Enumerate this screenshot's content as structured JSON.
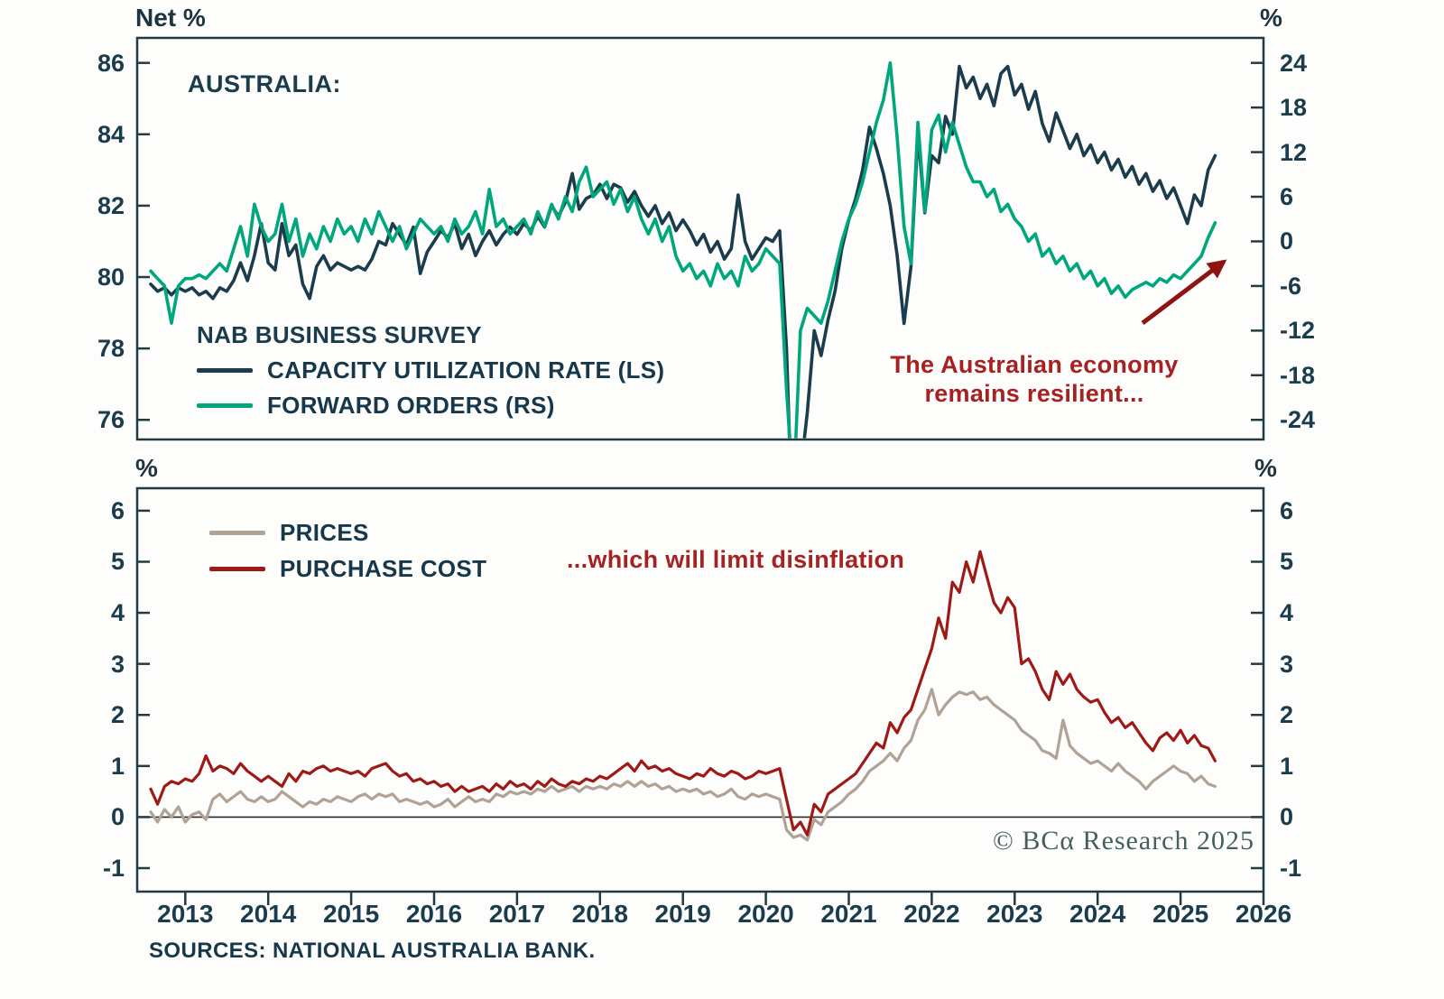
{
  "axes_titles": {
    "top_left": "Net %",
    "top_right": "%",
    "bottom_left": "%",
    "bottom_right": "%"
  },
  "x_axis": {
    "years": [
      2013,
      2014,
      2015,
      2016,
      2017,
      2018,
      2019,
      2020,
      2021,
      2022,
      2023,
      2024,
      2025,
      2026
    ]
  },
  "sources": "SOURCES: NATIONAL AUSTRALIA BANK.",
  "watermark": "© BCα Research 2025",
  "colors": {
    "axis": "#1f3b44",
    "text": "#1b3c4c",
    "zero_line": "#2a2a2a"
  },
  "chart_data": [
    {
      "type": "line",
      "title": "AUSTRALIA:",
      "legend_title": "NAB BUSINESS SURVEY",
      "x_start": 2012.583,
      "x_step": 0.08333,
      "x_range": [
        2012.42,
        2026.0
      ],
      "left_axis": {
        "title": "Net %",
        "ticks": [
          86,
          84,
          82,
          80,
          78,
          76
        ],
        "range": [
          75.45,
          86.7
        ]
      },
      "right_axis": {
        "title": "%",
        "ticks": [
          24,
          18,
          12,
          6,
          0,
          -6,
          -12,
          -18,
          -24
        ],
        "range": [
          -26.64,
          27.36
        ]
      },
      "series": [
        {
          "name": "CAPACITY UTILIZATION RATE (LS)",
          "axis": "left",
          "color": "#1b3c4c",
          "values": [
            79.8,
            79.6,
            79.7,
            79.5,
            79.7,
            79.6,
            79.7,
            79.5,
            79.6,
            79.4,
            79.7,
            79.6,
            79.9,
            80.4,
            79.9,
            80.6,
            81.5,
            80.4,
            80.2,
            81.5,
            80.6,
            80.9,
            79.8,
            79.4,
            80.3,
            80.6,
            80.2,
            80.4,
            80.3,
            80.2,
            80.3,
            80.2,
            80.5,
            81.0,
            80.9,
            81.5,
            81.2,
            80.9,
            81.4,
            80.1,
            80.7,
            81.0,
            81.3,
            81.1,
            81.5,
            80.8,
            81.2,
            80.6,
            81.0,
            81.3,
            80.9,
            81.2,
            81.4,
            81.2,
            81.5,
            81.3,
            81.7,
            81.4,
            82.0,
            81.7,
            82.1,
            82.9,
            81.9,
            82.2,
            82.3,
            82.6,
            82.2,
            82.6,
            82.5,
            82.1,
            82.4,
            82.0,
            81.7,
            82.0,
            81.5,
            81.8,
            81.3,
            81.6,
            81.3,
            80.9,
            81.2,
            80.7,
            81.0,
            80.5,
            80.8,
            82.3,
            81.0,
            80.5,
            80.8,
            81.1,
            81.0,
            81.3,
            78.0,
            72.0,
            74.5,
            76.2,
            78.5,
            77.8,
            78.8,
            79.6,
            80.8,
            81.6,
            82.2,
            83.0,
            84.2,
            83.6,
            82.9,
            82.0,
            80.6,
            78.7,
            80.3,
            84.0,
            81.8,
            83.4,
            83.2,
            84.5,
            84.0,
            85.9,
            85.3,
            85.6,
            85.0,
            85.4,
            84.8,
            85.7,
            85.9,
            85.1,
            85.4,
            84.7,
            85.2,
            84.3,
            83.8,
            84.6,
            84.1,
            83.6,
            84.0,
            83.4,
            83.7,
            83.2,
            83.5,
            83.0,
            83.3,
            82.8,
            83.1,
            82.6,
            82.9,
            82.4,
            82.7,
            82.2,
            82.5,
            82.0,
            81.5,
            82.3,
            82.0,
            83.0,
            83.4
          ]
        },
        {
          "name": "FORWARD ORDERS (RS)",
          "axis": "right",
          "color": "#00a77d",
          "values": [
            -4,
            -5,
            -6,
            -11,
            -6,
            -5,
            -5,
            -4.5,
            -5,
            -4,
            -3,
            -4,
            -1,
            2,
            -2,
            5,
            2,
            0,
            1,
            5,
            0,
            3,
            -2,
            1,
            -1,
            2,
            0,
            3,
            1,
            2,
            0,
            3,
            1,
            4,
            2,
            0,
            2,
            -1,
            1,
            3,
            2,
            1,
            2,
            0,
            3,
            1,
            2,
            4,
            1,
            7,
            2,
            3,
            1,
            2,
            3,
            1,
            4,
            2,
            5,
            3,
            6,
            4,
            8,
            10,
            6,
            7,
            8,
            5,
            7,
            4,
            6,
            3,
            1,
            3,
            0,
            2,
            -2,
            -4,
            -3,
            -5,
            -4,
            -6,
            -3,
            -5,
            -4,
            -6,
            -2,
            -4,
            -3,
            -1,
            -2,
            -3,
            -20,
            -34,
            -12,
            -9,
            -10,
            -11,
            -8,
            -4,
            0,
            3,
            5,
            8,
            12,
            16,
            19,
            24,
            14,
            2,
            -3,
            16,
            4,
            15,
            17,
            12,
            16,
            13,
            10,
            8,
            8,
            6,
            7,
            4,
            5,
            3,
            2,
            0,
            1,
            -2,
            -1,
            -3,
            -2,
            -4,
            -3,
            -5,
            -4,
            -6,
            -5,
            -7,
            -6,
            -7.5,
            -6.5,
            -6,
            -5.5,
            -6,
            -5,
            -5.5,
            -4.5,
            -5,
            -4,
            -3,
            -2,
            0.5,
            2.5
          ]
        }
      ],
      "annotation": {
        "lines": [
          "The Australian economy",
          "remains resilient..."
        ],
        "color": "#a62121"
      },
      "arrow_color": "#8f1310"
    },
    {
      "type": "line",
      "x_start": 2012.583,
      "x_step": 0.08333,
      "x_range": [
        2012.42,
        2026.0
      ],
      "left_axis": {
        "title": "%",
        "ticks": [
          6,
          5,
          4,
          3,
          2,
          1,
          0,
          -1
        ],
        "range": [
          -1.46,
          6.44
        ]
      },
      "right_axis": {
        "title": "%",
        "ticks": [
          6,
          5,
          4,
          3,
          2,
          1,
          0,
          -1
        ],
        "range": [
          -1.46,
          6.44
        ]
      },
      "zero_line": true,
      "series": [
        {
          "name": "PRICES",
          "axis": "left",
          "color": "#b0a294",
          "values": [
            0.1,
            -0.1,
            0.15,
            0,
            0.2,
            -0.1,
            0.05,
            0.1,
            -0.05,
            0.35,
            0.45,
            0.3,
            0.4,
            0.5,
            0.35,
            0.3,
            0.4,
            0.3,
            0.35,
            0.5,
            0.4,
            0.3,
            0.2,
            0.3,
            0.25,
            0.35,
            0.3,
            0.4,
            0.35,
            0.3,
            0.4,
            0.45,
            0.35,
            0.45,
            0.4,
            0.45,
            0.3,
            0.35,
            0.3,
            0.25,
            0.3,
            0.2,
            0.25,
            0.35,
            0.2,
            0.3,
            0.4,
            0.3,
            0.35,
            0.3,
            0.45,
            0.4,
            0.5,
            0.45,
            0.5,
            0.45,
            0.55,
            0.5,
            0.6,
            0.5,
            0.55,
            0.6,
            0.5,
            0.6,
            0.55,
            0.6,
            0.55,
            0.65,
            0.6,
            0.7,
            0.6,
            0.7,
            0.6,
            0.65,
            0.55,
            0.6,
            0.5,
            0.55,
            0.5,
            0.55,
            0.45,
            0.5,
            0.4,
            0.45,
            0.55,
            0.4,
            0.35,
            0.45,
            0.4,
            0.45,
            0.4,
            0.35,
            -0.25,
            -0.4,
            -0.35,
            -0.45,
            -0.05,
            -0.15,
            0.1,
            0.2,
            0.3,
            0.45,
            0.55,
            0.7,
            0.9,
            1.0,
            1.1,
            1.25,
            1.1,
            1.35,
            1.5,
            1.9,
            2.1,
            2.5,
            2.0,
            2.2,
            2.35,
            2.45,
            2.4,
            2.45,
            2.3,
            2.35,
            2.2,
            2.1,
            2.0,
            1.9,
            1.7,
            1.6,
            1.5,
            1.3,
            1.25,
            1.15,
            1.9,
            1.4,
            1.25,
            1.15,
            1.05,
            1.1,
            1.0,
            0.9,
            1.05,
            0.9,
            0.8,
            0.7,
            0.55,
            0.7,
            0.8,
            0.9,
            1.0,
            0.9,
            0.85,
            0.7,
            0.8,
            0.65,
            0.6
          ]
        },
        {
          "name": "PURCHASE COST",
          "axis": "left",
          "color": "#9e1a17",
          "values": [
            0.55,
            0.25,
            0.6,
            0.7,
            0.65,
            0.75,
            0.7,
            0.85,
            1.2,
            0.9,
            1.0,
            0.95,
            0.85,
            1.05,
            0.9,
            0.8,
            0.7,
            0.8,
            0.7,
            0.6,
            0.85,
            0.7,
            0.9,
            0.85,
            0.95,
            1.0,
            0.9,
            0.95,
            0.9,
            0.85,
            0.9,
            0.8,
            0.95,
            1.0,
            1.05,
            0.9,
            0.8,
            0.85,
            0.7,
            0.75,
            0.65,
            0.7,
            0.6,
            0.65,
            0.5,
            0.6,
            0.5,
            0.55,
            0.6,
            0.5,
            0.65,
            0.55,
            0.7,
            0.6,
            0.65,
            0.55,
            0.7,
            0.6,
            0.75,
            0.65,
            0.6,
            0.7,
            0.65,
            0.75,
            0.7,
            0.8,
            0.75,
            0.85,
            0.95,
            1.05,
            0.9,
            1.1,
            0.95,
            1.0,
            0.9,
            0.95,
            0.85,
            0.8,
            0.75,
            0.85,
            0.8,
            0.95,
            0.85,
            0.8,
            0.9,
            0.85,
            0.75,
            0.8,
            0.9,
            0.85,
            0.9,
            0.95,
            0.35,
            -0.25,
            -0.1,
            -0.35,
            0.25,
            0.1,
            0.45,
            0.55,
            0.65,
            0.75,
            0.85,
            1.05,
            1.25,
            1.45,
            1.35,
            1.85,
            1.65,
            1.95,
            2.1,
            2.5,
            2.9,
            3.3,
            3.9,
            3.5,
            4.6,
            4.4,
            5.0,
            4.6,
            5.2,
            4.7,
            4.2,
            4.0,
            4.3,
            4.1,
            3.0,
            3.1,
            2.85,
            2.5,
            2.3,
            2.85,
            2.6,
            2.8,
            2.5,
            2.35,
            2.25,
            2.3,
            2.05,
            1.85,
            1.95,
            1.75,
            1.85,
            1.65,
            1.45,
            1.3,
            1.55,
            1.65,
            1.5,
            1.7,
            1.45,
            1.6,
            1.4,
            1.35,
            1.1
          ]
        }
      ],
      "annotation": {
        "lines": [
          "...which will limit disinflation"
        ],
        "color": "#a62121"
      }
    }
  ]
}
